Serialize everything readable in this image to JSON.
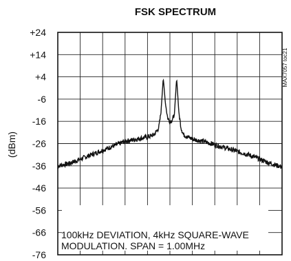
{
  "chart_data": {
    "type": "line",
    "title": "FSK SPECTRUM",
    "ylabel": "(dBm)",
    "xlabel": "",
    "ylim": [
      -76,
      24
    ],
    "yticks": [
      "+24",
      "+14",
      "+4",
      "-6",
      "-16",
      "-26",
      "-36",
      "-46",
      "-56",
      "-66",
      "-76"
    ],
    "xlim": [
      0,
      10
    ],
    "x_divisions": 10,
    "grid": true,
    "annotation_line1": "100kHz DEVIATION, 4kHz SQUARE-WAVE",
    "annotation_line2": "MODULATION. SPAN = 1.00MHz",
    "part_number": "MAX7057 toc21",
    "series": [
      {
        "x": [
          0,
          0.5,
          1,
          1.5,
          2,
          2.5,
          3,
          3.5,
          4,
          4.3,
          4.5,
          4.6,
          4.7,
          4.8,
          4.9,
          5.0,
          5.1,
          5.2,
          5.3,
          5.4,
          5.5,
          5.6,
          5.7,
          5.8,
          5.9,
          6.0,
          6.5,
          7,
          7.5,
          8,
          8.5,
          9,
          9.5,
          10
        ],
        "values": [
          -36,
          -35,
          -33,
          -31,
          -29,
          -27,
          -25,
          -24,
          -23,
          -22,
          -19,
          -12,
          3.5,
          -8,
          -14.5,
          -16,
          -15.5,
          -13,
          3.5,
          -12,
          -19,
          -22,
          -22.5,
          -23,
          -23.5,
          -24,
          -25,
          -26.5,
          -28,
          -29.5,
          -31,
          -33,
          -35,
          -36.5
        ]
      }
    ]
  }
}
